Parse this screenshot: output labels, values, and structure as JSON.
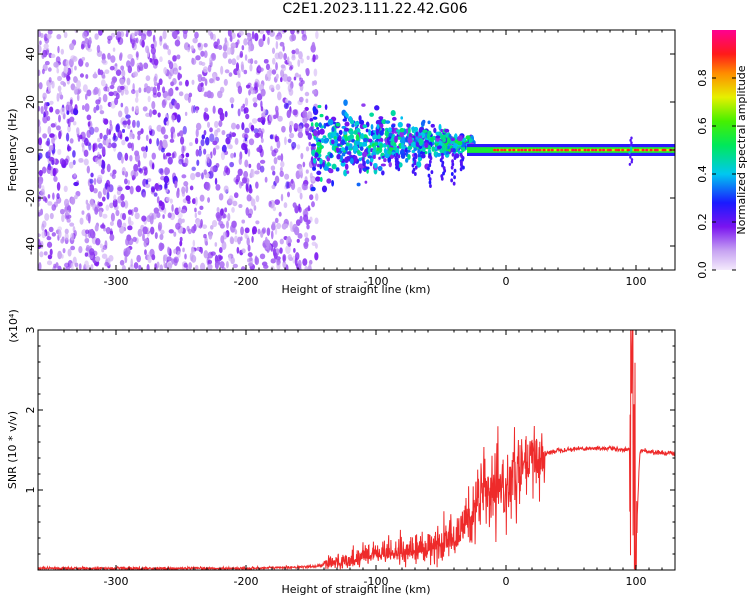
{
  "title": "C2E1.2023.111.22.42.G06",
  "chart_data": [
    {
      "type": "heatmap",
      "xlabel": "Height of straight line (km)",
      "ylabel": "Frequency (Hz)",
      "xlim": [
        -360,
        130
      ],
      "ylim": [
        -50,
        50
      ],
      "x_ticks": [
        -300,
        -200,
        -100,
        0,
        100
      ],
      "y_ticks": [
        -40,
        -20,
        0,
        20,
        40
      ],
      "colorbar": {
        "label": "Normalized spectral amplitude",
        "range": [
          0,
          1
        ],
        "ticks": [
          0.0,
          0.2,
          0.4,
          0.6,
          0.8
        ],
        "tick_labels": [
          "0.0",
          "0.2",
          "0.4",
          "0.6",
          "0.8"
        ],
        "colormap": "rainbow (white-violet-blue-cyan-green-yellow-red-magenta)"
      },
      "regions": [
        {
          "x_range": [
            -360,
            -150
          ],
          "freq_spread": [
            -50,
            50
          ],
          "amplitude": 0.1
        },
        {
          "x_range": [
            -150,
            -30
          ],
          "freq_spread": [
            -15,
            15
          ],
          "amplitude": 0.3
        },
        {
          "x_range": [
            -30,
            130
          ],
          "freq_spread": [
            -2,
            2
          ],
          "amplitude": 0.9
        }
      ]
    },
    {
      "type": "line",
      "xlabel": "Height of straight line (km)",
      "ylabel": "SNR (10 * v/v)",
      "multiplier": "(x10⁴)",
      "xlim": [
        -360,
        130
      ],
      "ylim": [
        0,
        3
      ],
      "x_ticks": [
        -300,
        -200,
        -100,
        0,
        100
      ],
      "y_ticks": [
        1,
        2,
        3
      ],
      "color": "#ee2a2a",
      "series": [
        {
          "x": [
            -360,
            -300,
            -200,
            -150,
            -120,
            -100,
            -80,
            -60,
            -40,
            -30,
            -20,
            -15,
            -10,
            0,
            10,
            20,
            30,
            40,
            60,
            80,
            95,
            97,
            100,
            103,
            110,
            130
          ],
          "values": [
            0.02,
            0.02,
            0.02,
            0.04,
            0.1,
            0.2,
            0.22,
            0.26,
            0.35,
            0.6,
            0.9,
            1.0,
            0.9,
            1.05,
            1.2,
            1.35,
            1.45,
            1.5,
            1.52,
            1.52,
            1.5,
            2.8,
            0.3,
            1.5,
            1.48,
            1.45
          ]
        }
      ]
    }
  ]
}
